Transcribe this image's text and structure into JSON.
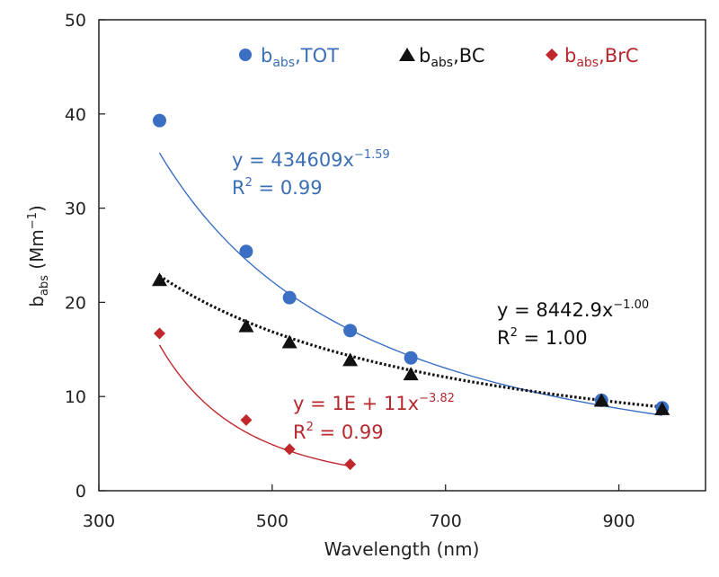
{
  "chart_data": {
    "type": "scatter",
    "xlabel": "Wavelength (nm)",
    "ylabel": {
      "main": "b",
      "sub": "abs",
      "unit_open": " (Mm",
      "unit_sup": "−1",
      "unit_close": ")"
    },
    "xlim": [
      300,
      1000
    ],
    "ylim": [
      0,
      50
    ],
    "xticks": [
      "300",
      "500",
      "700",
      "900"
    ],
    "xtick_values": [
      300,
      500,
      700,
      900
    ],
    "yticks": [
      "0",
      "10",
      "20",
      "30",
      "40",
      "50"
    ],
    "ytick_values": [
      0,
      10,
      20,
      30,
      40,
      50
    ],
    "grid": false,
    "legend_position": "top",
    "series": [
      {
        "name": "b_abs,TOT",
        "legend": {
          "main": "b",
          "sub": "abs",
          "suffix": ",TOT"
        },
        "marker": "circle",
        "color": "#3a6fc4",
        "text_color": "#3a6fb5",
        "x": [
          370,
          470,
          520,
          590,
          660,
          880,
          950
        ],
        "y": [
          39.3,
          25.4,
          20.5,
          17.0,
          14.1,
          9.6,
          8.8
        ],
        "fit": {
          "a": 434609,
          "b": -1.59,
          "x_range": [
            370,
            950
          ],
          "line": "solid"
        },
        "equation": {
          "line1": "y = 434609x",
          "exp": "−1.59",
          "r2_label": "R",
          "r2_sup": "2",
          "r2_value": " = 0.99"
        }
      },
      {
        "name": "b_abs,BC",
        "legend": {
          "main": "b",
          "sub": "abs",
          "suffix": ",BC"
        },
        "marker": "triangle",
        "color": "#111111",
        "text_color": "#111111",
        "x": [
          370,
          470,
          520,
          590,
          660,
          880,
          950
        ],
        "y": [
          22.3,
          17.4,
          15.7,
          13.8,
          12.3,
          9.5,
          8.6
        ],
        "fit": {
          "a": 8442.9,
          "b": -1.0,
          "x_range": [
            370,
            950
          ],
          "line": "dotted"
        },
        "equation": {
          "line1": "y = 8442.9x",
          "exp": "−1.00",
          "r2_label": "R",
          "r2_sup": "2",
          "r2_value": " = 1.00"
        }
      },
      {
        "name": "b_abs,BrC",
        "legend": {
          "main": "b",
          "sub": "abs",
          "suffix": ",BrC"
        },
        "marker": "diamond",
        "color": "#c0282d",
        "text_color": "#b5282d",
        "x": [
          370,
          470,
          520,
          590
        ],
        "y": [
          16.7,
          7.5,
          4.4,
          2.8
        ],
        "fit": {
          "a": 100000000000.0,
          "b": -3.82,
          "x_range": [
            370,
            590
          ],
          "line": "solid"
        },
        "equation": {
          "line1": "y = 1E + 11x",
          "exp": "−3.82",
          "r2_label": "R",
          "r2_sup": "2",
          "r2_value": " = 0.99"
        }
      }
    ]
  }
}
